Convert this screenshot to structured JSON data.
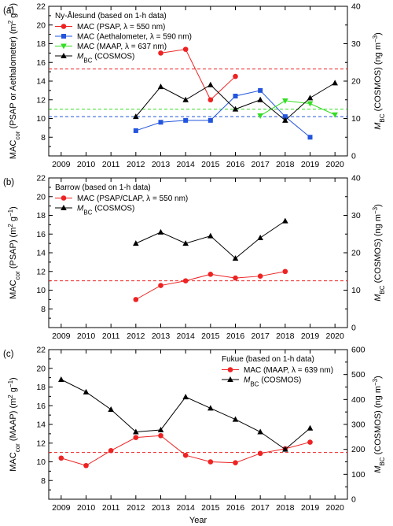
{
  "chart_data": [
    {
      "type": "line",
      "panel_label": "(a)",
      "legend_title": "Ny-Ålesund (based on 1-h data)",
      "legend_placement": "top-left",
      "xlabel": "",
      "ylabel_left": "MACcor (PSAP or Aethalometer) (m2 g−1)",
      "ylabel_left_parts": [
        "MAC",
        "cor",
        " (PSAP or Aethalometer) (m",
        "2",
        " g",
        "−1",
        ")"
      ],
      "ylabel_right": "MBC (COSMOS) (ng m−3)",
      "ylabel_right_parts": [
        "M",
        "BC",
        " (COSMOS) (ng m",
        "−3",
        ")"
      ],
      "xlim": [
        2008.5,
        2020.5
      ],
      "x_ticks": [
        2009,
        2010,
        2011,
        2012,
        2013,
        2014,
        2015,
        2016,
        2017,
        2018,
        2019,
        2020
      ],
      "ylim_left": [
        6,
        22
      ],
      "yticks_left": [
        8,
        10,
        12,
        14,
        16,
        18,
        20,
        22
      ],
      "ylim_right": [
        0,
        40
      ],
      "yticks_right": [
        0,
        10,
        20,
        30,
        40
      ],
      "series": [
        {
          "name": "MAC (PSAP, λ = 550 nm)",
          "axis": "left",
          "color": "#ee2222",
          "marker": "circle",
          "x": [
            2013,
            2014,
            2015,
            2016
          ],
          "values": [
            17.0,
            17.4,
            12.0,
            14.5
          ]
        },
        {
          "name": "MAC (Aethalometer, λ = 590 nm)",
          "axis": "left",
          "color": "#2255dd",
          "marker": "square",
          "x": [
            2012,
            2013,
            2014,
            2015,
            2016,
            2017,
            2018,
            2019
          ],
          "values": [
            8.7,
            9.6,
            9.8,
            9.8,
            12.4,
            13.0,
            10.2,
            8.0
          ]
        },
        {
          "name": "MAC (MAAP, λ = 637 nm)",
          "axis": "left",
          "color": "#33dd22",
          "marker": "triangle-down",
          "x": [
            2017,
            2018,
            2019,
            2020
          ],
          "values": [
            10.3,
            11.9,
            11.6,
            10.4
          ]
        },
        {
          "name": "MBC (COSMOS)",
          "name_parts": [
            "M",
            "BC",
            " (COSMOS)"
          ],
          "axis": "right",
          "color": "#000000",
          "marker": "triangle-up",
          "x": [
            2012,
            2013,
            2014,
            2015,
            2016,
            2017,
            2018,
            2019,
            2020
          ],
          "values": [
            10.5,
            18.5,
            15.0,
            19.0,
            12.5,
            15.0,
            9.5,
            15.5,
            19.5
          ]
        }
      ],
      "reference_lines": [
        {
          "axis": "left",
          "y": 15.3,
          "color": "#ee2222",
          "style": "dashed"
        },
        {
          "axis": "left",
          "y": 10.2,
          "color": "#2255dd",
          "style": "dashed"
        },
        {
          "axis": "left",
          "y": 11.0,
          "color": "#33dd22",
          "style": "dashed"
        }
      ]
    },
    {
      "type": "line",
      "panel_label": "(b)",
      "legend_title": "Barrow (based on 1-h data)",
      "legend_placement": "top-left",
      "xlabel": "",
      "ylabel_left": "MACcor (PSAP) (m2 g−1)",
      "ylabel_left_parts": [
        "MAC",
        "cor",
        " (PSAP) (m",
        "2",
        " g",
        "−1",
        ")"
      ],
      "ylabel_right": "MBC (COSMOS) (ng m−3)",
      "ylabel_right_parts": [
        "M",
        "BC",
        " (COSMOS) (ng m",
        "−3",
        ")"
      ],
      "xlim": [
        2008.5,
        2020.5
      ],
      "x_ticks": [
        2009,
        2010,
        2011,
        2012,
        2013,
        2014,
        2015,
        2016,
        2017,
        2018,
        2019,
        2020
      ],
      "ylim_left": [
        6,
        22
      ],
      "yticks_left": [
        8,
        10,
        12,
        14,
        16,
        18,
        20,
        22
      ],
      "ylim_right": [
        0,
        40
      ],
      "yticks_right": [
        0,
        10,
        20,
        30,
        40
      ],
      "series": [
        {
          "name": "MAC (PSAP/CLAP, λ = 550 nm)",
          "axis": "left",
          "color": "#ee2222",
          "marker": "circle",
          "x": [
            2012,
            2013,
            2014,
            2015,
            2016,
            2017,
            2018
          ],
          "values": [
            9.0,
            10.5,
            11.0,
            11.7,
            11.3,
            11.5,
            12.0
          ]
        },
        {
          "name": "MBC (COSMOS)",
          "name_parts": [
            "M",
            "BC",
            " (COSMOS)"
          ],
          "axis": "right",
          "color": "#000000",
          "marker": "triangle-up",
          "x": [
            2012,
            2013,
            2014,
            2015,
            2016,
            2017,
            2018
          ],
          "values": [
            22.5,
            25.5,
            22.5,
            24.5,
            18.5,
            24.0,
            28.5
          ]
        }
      ],
      "reference_lines": [
        {
          "axis": "left",
          "y": 11.0,
          "color": "#ee2222",
          "style": "dashed"
        }
      ]
    },
    {
      "type": "line",
      "panel_label": "(c)",
      "legend_title": "Fukue (based on 1-h data)",
      "legend_placement": "top-right",
      "xlabel": "Year",
      "ylabel_left": "MACcor (MAAP) (m2 g−1)",
      "ylabel_left_parts": [
        "MAC",
        "cor",
        " (MAAP) (m",
        "2",
        " g",
        "−1",
        ")"
      ],
      "ylabel_right": "MBC (COSMOS) (ng m−3)",
      "ylabel_right_parts": [
        "M",
        "BC",
        " (COSMOS) (ng m",
        "−3",
        ")"
      ],
      "xlim": [
        2008.5,
        2020.5
      ],
      "x_ticks": [
        2009,
        2010,
        2011,
        2012,
        2013,
        2014,
        2015,
        2016,
        2017,
        2018,
        2019,
        2020
      ],
      "ylim_left": [
        6,
        22
      ],
      "yticks_left": [
        8,
        10,
        12,
        14,
        16,
        18,
        20,
        22
      ],
      "ylim_right": [
        0,
        600
      ],
      "yticks_right": [
        0,
        100,
        200,
        300,
        400,
        500,
        600
      ],
      "series": [
        {
          "name": "MAC (MAAP, λ = 639 nm)",
          "axis": "left",
          "color": "#ee2222",
          "marker": "circle",
          "x": [
            2009,
            2010,
            2011,
            2012,
            2013,
            2014,
            2015,
            2016,
            2017,
            2018,
            2019
          ],
          "values": [
            10.4,
            9.6,
            11.2,
            12.6,
            12.8,
            10.7,
            10.0,
            9.9,
            10.9,
            11.4,
            12.1
          ]
        },
        {
          "name": "MBC (COSMOS)",
          "name_parts": [
            "M",
            "BC",
            " (COSMOS)"
          ],
          "axis": "right",
          "color": "#000000",
          "marker": "triangle-up",
          "x": [
            2009,
            2010,
            2011,
            2012,
            2013,
            2014,
            2015,
            2016,
            2017,
            2018,
            2019
          ],
          "values": [
            480,
            430,
            360,
            270,
            278,
            410,
            365,
            320,
            270,
            200,
            285
          ]
        }
      ],
      "reference_lines": [
        {
          "axis": "left",
          "y": 11.0,
          "color": "#ee2222",
          "style": "dashed"
        }
      ]
    }
  ]
}
